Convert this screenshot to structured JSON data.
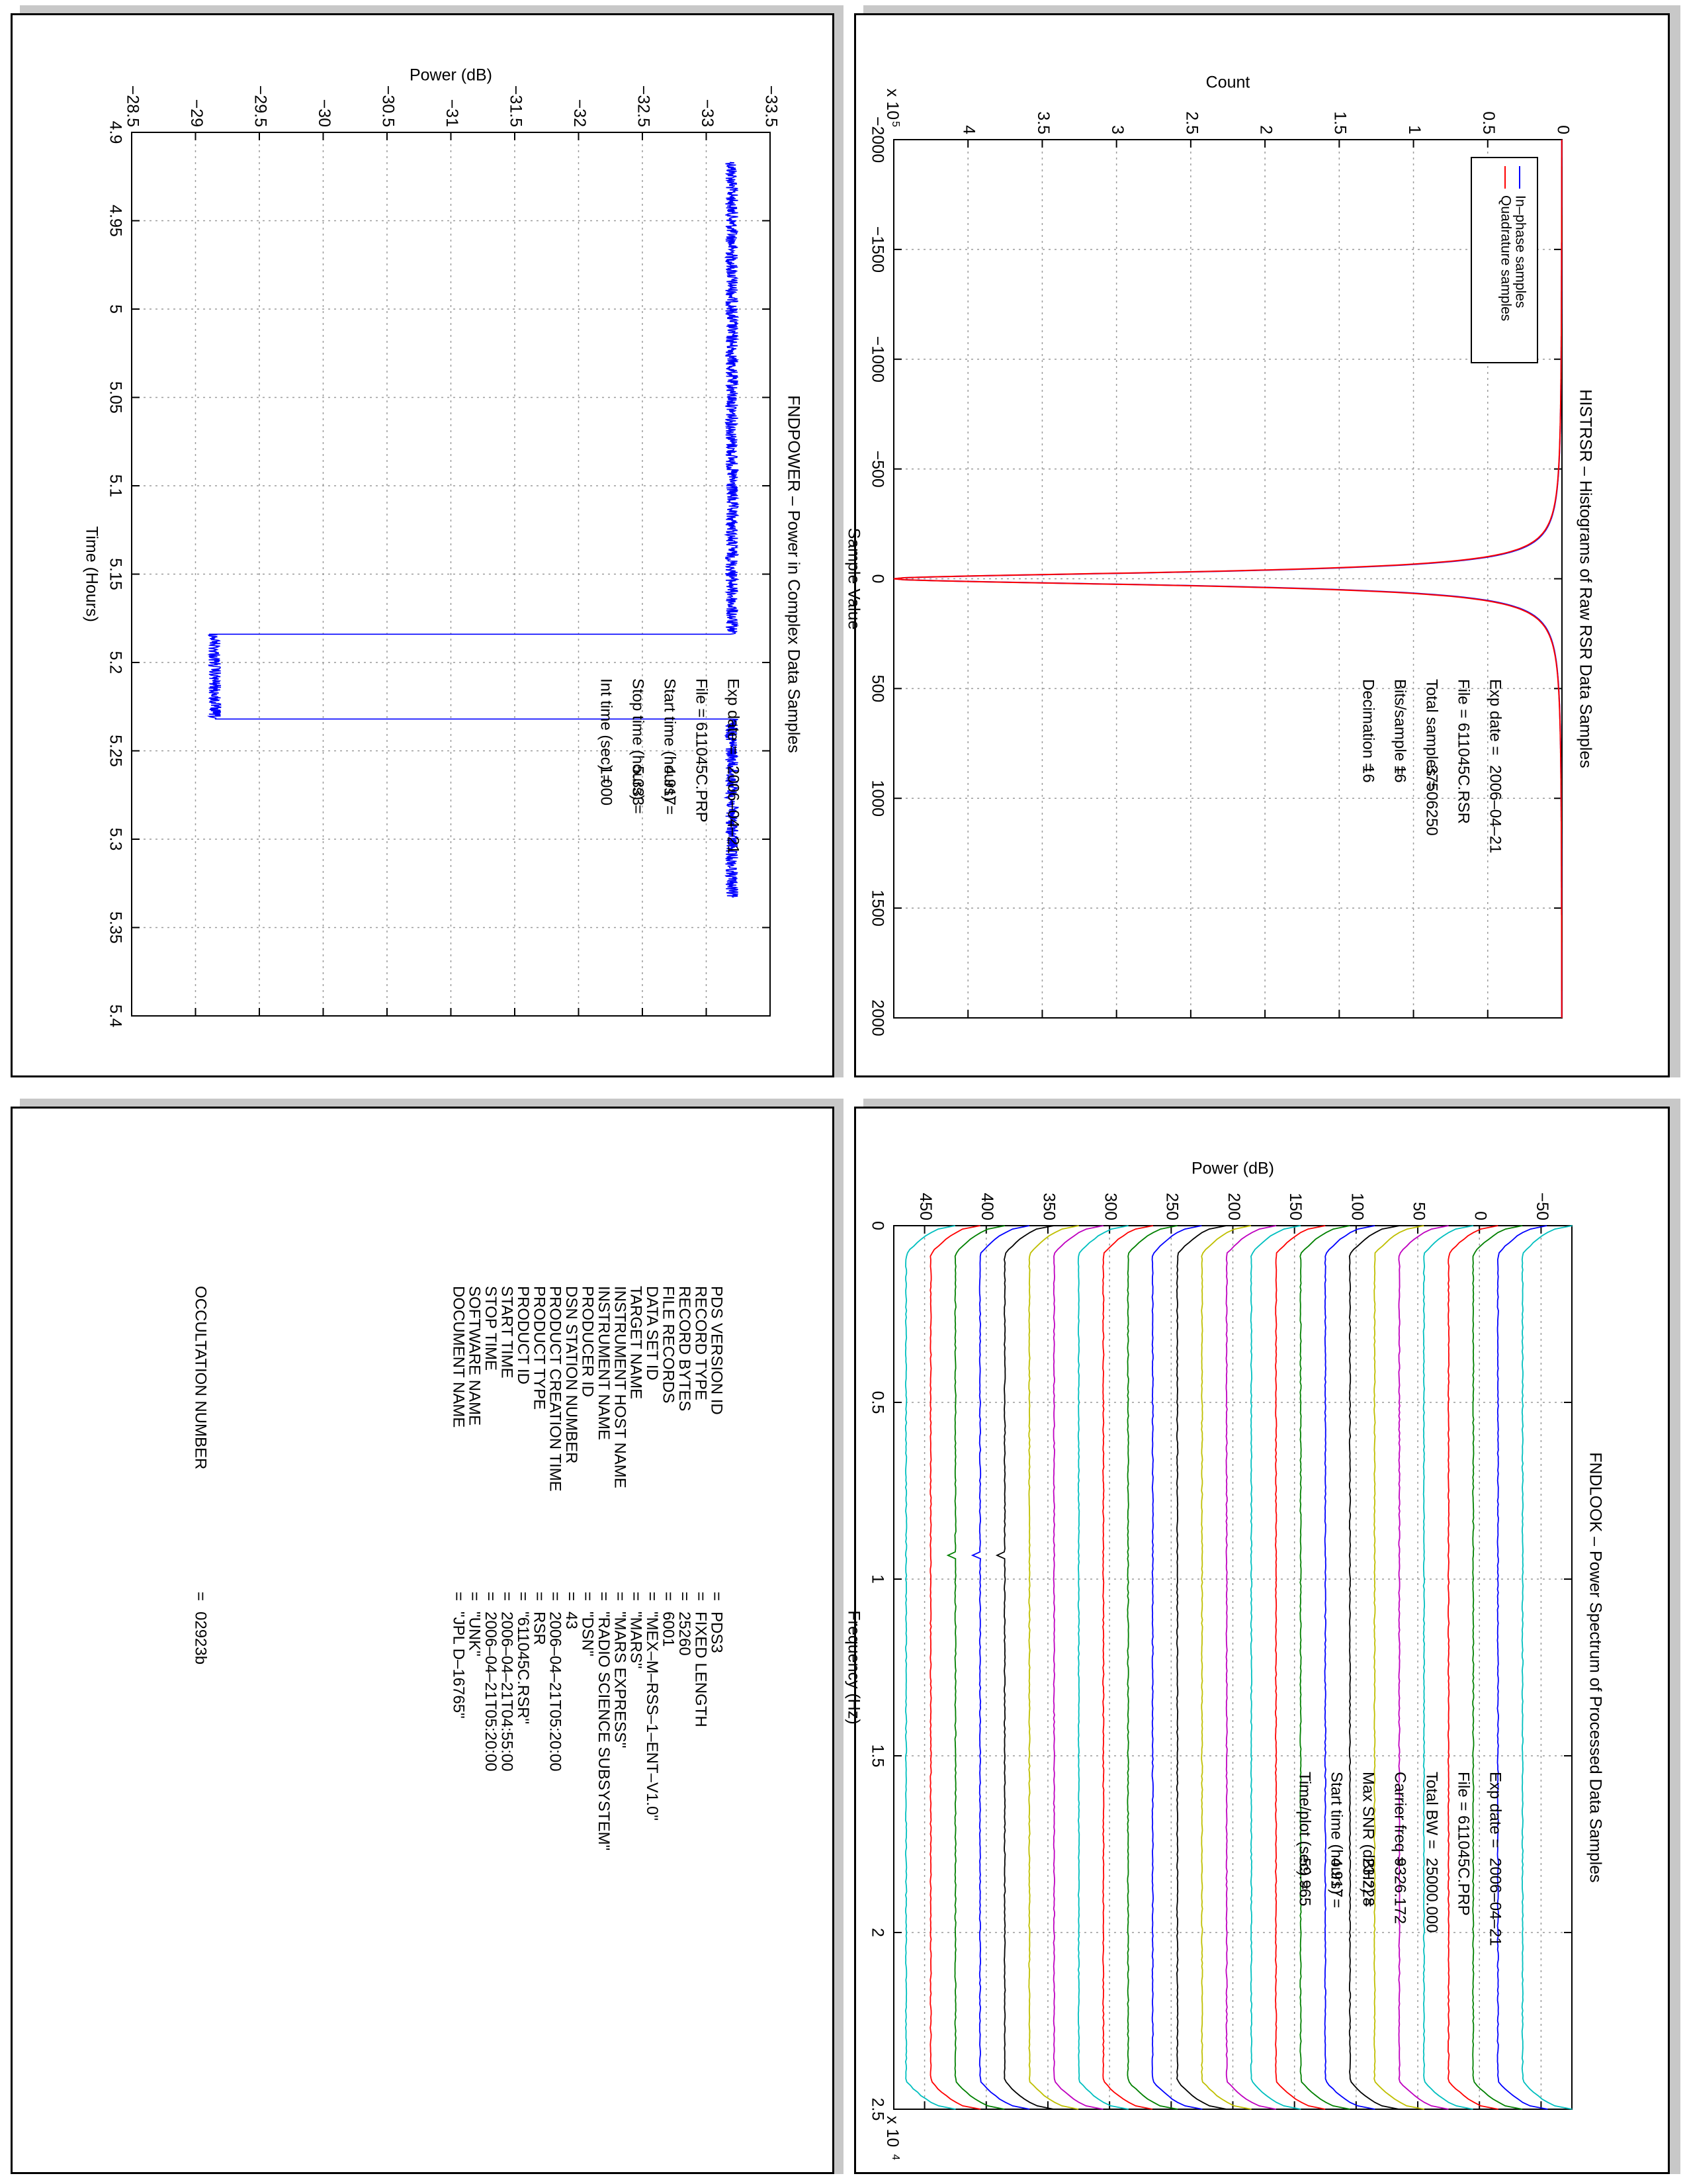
{
  "chart_data": [
    {
      "id": "fndpower",
      "type": "line",
      "title": "FNDPOWER – Power in Complex Data Samples",
      "xlabel": "Time (Hours)",
      "ylabel": "Power (dB)",
      "xlim": [
        4.9,
        5.4
      ],
      "ylim": [
        -33.5,
        -28.5
      ],
      "x_ticks": [
        4.9,
        4.95,
        5,
        5.05,
        5.1,
        5.15,
        5.2,
        5.25,
        5.3,
        5.35,
        5.4
      ],
      "y_ticks": [
        -33.5,
        -33,
        -32.5,
        -32,
        -31.5,
        -31,
        -30.5,
        -30,
        -29.5,
        -29,
        -28.5
      ],
      "x_tick_labels": [
        "4.9",
        "4.95",
        "5",
        "5.05",
        "5.1",
        "5.15",
        "5.2",
        "5.25",
        "5.3",
        "5.35",
        "5.4"
      ],
      "y_tick_labels": [
        "−33.5",
        "−33",
        "−32.5",
        "−32",
        "−31.5",
        "−31",
        "−30.5",
        "−30",
        "−29.5",
        "−29",
        "−28.5"
      ],
      "grid": true,
      "series": [
        {
          "color": "#0000ff",
          "x": [
            4.917,
            4.95,
            5.0,
            5.05,
            5.1,
            5.15,
            5.184,
            5.184,
            5.2,
            5.22,
            5.232,
            5.232,
            5.25,
            5.3,
            5.333
          ],
          "y": [
            -33.2,
            -33.2,
            -33.2,
            -33.2,
            -33.2,
            -33.2,
            -33.2,
            -29.15,
            -29.15,
            -29.15,
            -29.15,
            -33.2,
            -33.2,
            -33.2,
            -33.2
          ],
          "noise": 0.05
        }
      ],
      "info": [
        {
          "label": "Exp date =",
          "value": "2006–04–21"
        },
        {
          "label": "File = 611045C.PRP",
          "value": ""
        },
        {
          "label": "Start time (hours) =",
          "value": "4.917"
        },
        {
          "label": "Stop time (hours) =",
          "value": "5.333"
        },
        {
          "label": "Int time (sec) =",
          "value": "1.000"
        }
      ]
    },
    {
      "id": "histrsr",
      "type": "line",
      "title": "HISTRSR – Histograms of Raw RSR Data Samples",
      "xlabel": "Sample Value",
      "ylabel": "Count",
      "y_multiplier": "x 10",
      "y_multiplier_exp": "5",
      "xlim": [
        -2000,
        2000
      ],
      "ylim": [
        0,
        4.5
      ],
      "x_ticks": [
        -2000,
        -1500,
        -1000,
        -500,
        0,
        500,
        1000,
        1500,
        2000
      ],
      "y_ticks": [
        0,
        0.5,
        1,
        1.5,
        2,
        2.5,
        3,
        3.5,
        4
      ],
      "x_tick_labels": [
        "−2000",
        "−1500",
        "−1000",
        "−500",
        "0",
        "500",
        "1000",
        "1500",
        "2000"
      ],
      "y_tick_labels": [
        "0",
        "0.5",
        "1",
        "1.5",
        "2",
        "2.5",
        "3",
        "3.5",
        "4"
      ],
      "grid": true,
      "peak": 4.5,
      "width": 35,
      "series": [
        {
          "name": "In–phase samples",
          "color": "#0000ff"
        },
        {
          "name": "Quadrature samples",
          "color": "#ff0000"
        }
      ],
      "legend": "top-right",
      "info": [
        {
          "label": "Exp date =",
          "value": "2006–04–21"
        },
        {
          "label": "File = 611045C.RSR",
          "value": ""
        },
        {
          "label": "Total samples =",
          "value": "37506250"
        },
        {
          "label": "Bits/sample =",
          "value": "16"
        },
        {
          "label": "Decimation =",
          "value": "16"
        }
      ]
    },
    {
      "id": "fndlook",
      "type": "line",
      "title": "FNDLOOK – Power Spectrum of Processed Data Samples",
      "xlabel": "Frequency (Hz)",
      "ylabel": "Power (dB)",
      "x_multiplier": "x 10",
      "x_multiplier_exp": "4",
      "xlim": [
        0,
        2.5
      ],
      "ylim": [
        -75,
        475
      ],
      "x_ticks": [
        0,
        0.5,
        1,
        1.5,
        2,
        2.5
      ],
      "y_ticks": [
        -50,
        0,
        50,
        100,
        150,
        200,
        250,
        300,
        350,
        400,
        450
      ],
      "x_tick_labels": [
        "0",
        "0.5",
        "1",
        "1.5",
        "2",
        "2.5"
      ],
      "y_tick_labels": [
        "−50",
        "0",
        "50",
        "100",
        "150",
        "200",
        "250",
        "300",
        "350",
        "400",
        "450"
      ],
      "grid": true,
      "trace_offsets": [
        -75,
        -55,
        -35,
        -15,
        5,
        25,
        45,
        65,
        85,
        105,
        125,
        145,
        165,
        185,
        205,
        225,
        245,
        265,
        285,
        305,
        325,
        345,
        365,
        385,
        405,
        425
      ],
      "trace_colors": [
        "#00bfbf",
        "#0000ff",
        "#008000",
        "#ff0000",
        "#00bfbf",
        "#bf00bf",
        "#bfbf00",
        "#000000",
        "#0000ff",
        "#008000",
        "#ff0000",
        "#00bfbf",
        "#bf00bf",
        "#bfbf00",
        "#000000",
        "#0000ff",
        "#008000",
        "#ff0000",
        "#00bfbf",
        "#bf00bf",
        "#bfbf00",
        "#000000",
        "#0000ff",
        "#008000",
        "#ff0000",
        "#00bfbf"
      ],
      "plateau_height": 40,
      "info": [
        {
          "label": "Exp date =",
          "value": "2006–04–21"
        },
        {
          "label": "File = 611045C.PRP",
          "value": ""
        },
        {
          "label": "Total BW =",
          "value": "25000.000"
        },
        {
          "label": "Carrier freq =",
          "value": "9326.172"
        },
        {
          "label": "Max SNR (dBHz) =",
          "value": "23.228"
        },
        {
          "label": "Start time (hours) =",
          "value": "4.917"
        },
        {
          "label": "Time/plot (sec) =",
          "value": "59.965"
        }
      ]
    }
  ],
  "label_table": {
    "rows": [
      {
        "key": "PDS VERSION ID",
        "eq": "=",
        "value": "PDS3"
      },
      {
        "key": "RECORD TYPE",
        "eq": "=",
        "value": "FIXED LENGTH"
      },
      {
        "key": "RECORD BYTES",
        "eq": "=",
        "value": "25260"
      },
      {
        "key": "FILE RECORDS",
        "eq": "=",
        "value": "6001"
      },
      {
        "key": "DATA SET ID",
        "eq": "=",
        "value": "\"MEX–M–RSS–1–ENT–V1.0\""
      },
      {
        "key": "TARGET NAME",
        "eq": "=",
        "value": "\"MARS\""
      },
      {
        "key": "INSTRUMENT HOST NAME",
        "eq": "=",
        "value": "\"MARS EXPRESS\""
      },
      {
        "key": "INSTRUMENT NAME",
        "eq": "=",
        "value": "\"RADIO SCIENCE SUBSYSTEM\""
      },
      {
        "key": "PRODUCER ID",
        "eq": "=",
        "value": "\"DSN\""
      },
      {
        "key": "DSN STATION NUMBER",
        "eq": "=",
        "value": "43"
      },
      {
        "key": "PRODUCT CREATION TIME",
        "eq": "=",
        "value": "2006–04–21T05:20:00"
      },
      {
        "key": "PRODUCT TYPE",
        "eq": "=",
        "value": "RSR"
      },
      {
        "key": "PRODUCT ID",
        "eq": "=",
        "value": "\"611045C.RSR\""
      },
      {
        "key": "START TIME",
        "eq": "=",
        "value": "2006–04–21T04:55:00"
      },
      {
        "key": "STOP TIME",
        "eq": "=",
        "value": "2006–04–21T05:20:00"
      },
      {
        "key": "SOFTWARE NAME",
        "eq": "=",
        "value": "\"UNK\""
      },
      {
        "key": "DOCUMENT NAME",
        "eq": "=",
        "value": "\"JPL D–16765\""
      }
    ],
    "occultation": {
      "key": "OCCULTATION NUMBER",
      "eq": "=",
      "value": "02923b"
    }
  }
}
